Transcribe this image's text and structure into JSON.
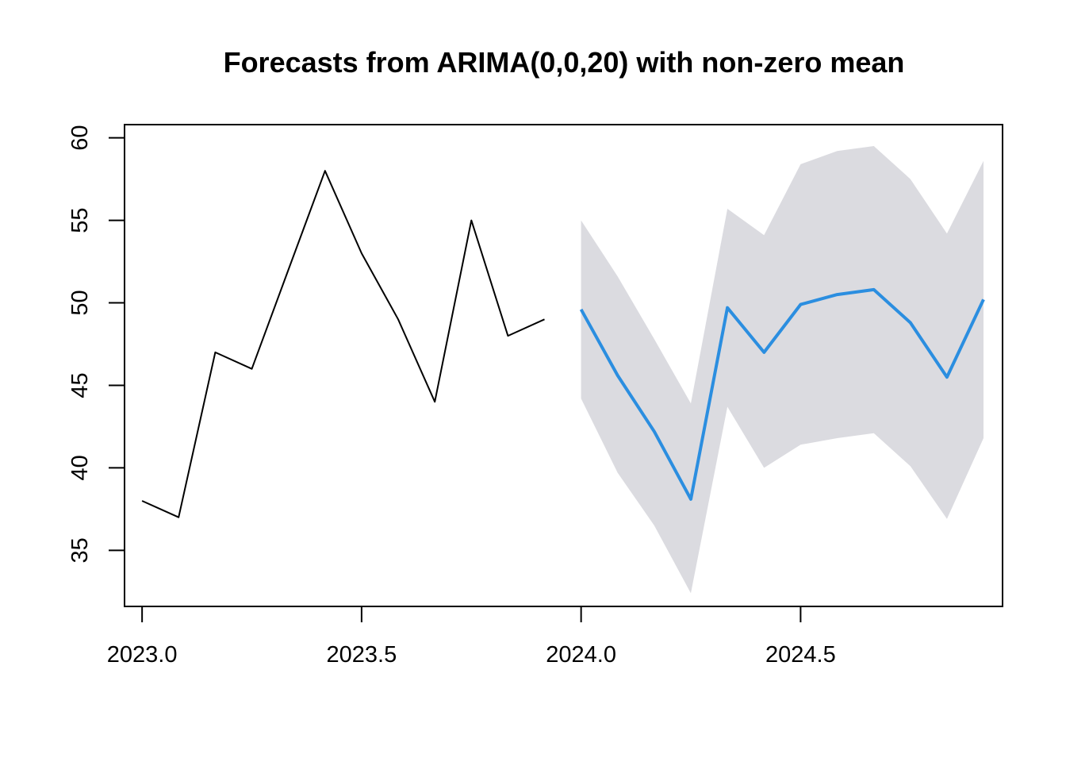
{
  "chart_data": {
    "type": "line",
    "title": "Forecasts from ARIMA(0,0,20) with non-zero mean",
    "xlabel": "",
    "ylabel": "",
    "xlim": [
      2022.96,
      2024.96
    ],
    "ylim": [
      31.6,
      60.8
    ],
    "x_ticks": [
      2023.0,
      2023.5,
      2024.0,
      2024.5
    ],
    "x_tick_labels": [
      "2023.0",
      "2023.5",
      "2024.0",
      "2024.5"
    ],
    "y_ticks": [
      35,
      40,
      45,
      50,
      55,
      60
    ],
    "y_tick_labels": [
      "35",
      "40",
      "45",
      "50",
      "55",
      "60"
    ],
    "grid": false,
    "series": [
      {
        "role": "observed",
        "color": "#000000",
        "x": [
          2023.0,
          2023.0833,
          2023.1667,
          2023.25,
          2023.3333,
          2023.4167,
          2023.5,
          2023.5833,
          2023.6667,
          2023.75,
          2023.8333,
          2023.9167
        ],
        "values": [
          38,
          37,
          47,
          46,
          52,
          58,
          53,
          49,
          44,
          55,
          48,
          49
        ]
      },
      {
        "role": "forecast",
        "color": "#2b8ee0",
        "x": [
          2024.0,
          2024.0833,
          2024.1667,
          2024.25,
          2024.3333,
          2024.4167,
          2024.5,
          2024.5833,
          2024.6667,
          2024.75,
          2024.8333,
          2024.9167
        ],
        "values": [
          49.6,
          45.6,
          42.2,
          38.1,
          49.7,
          47.0,
          49.9,
          50.5,
          50.8,
          48.8,
          45.5,
          50.2
        ],
        "lower": [
          44.2,
          39.7,
          36.5,
          32.4,
          43.7,
          40.0,
          41.4,
          41.8,
          42.1,
          40.1,
          36.9,
          41.8
        ],
        "upper": [
          55.0,
          51.6,
          47.8,
          43.9,
          55.7,
          54.1,
          58.4,
          59.2,
          59.5,
          57.5,
          54.2,
          58.6
        ]
      }
    ],
    "interval_color": "#dbdbe0"
  }
}
